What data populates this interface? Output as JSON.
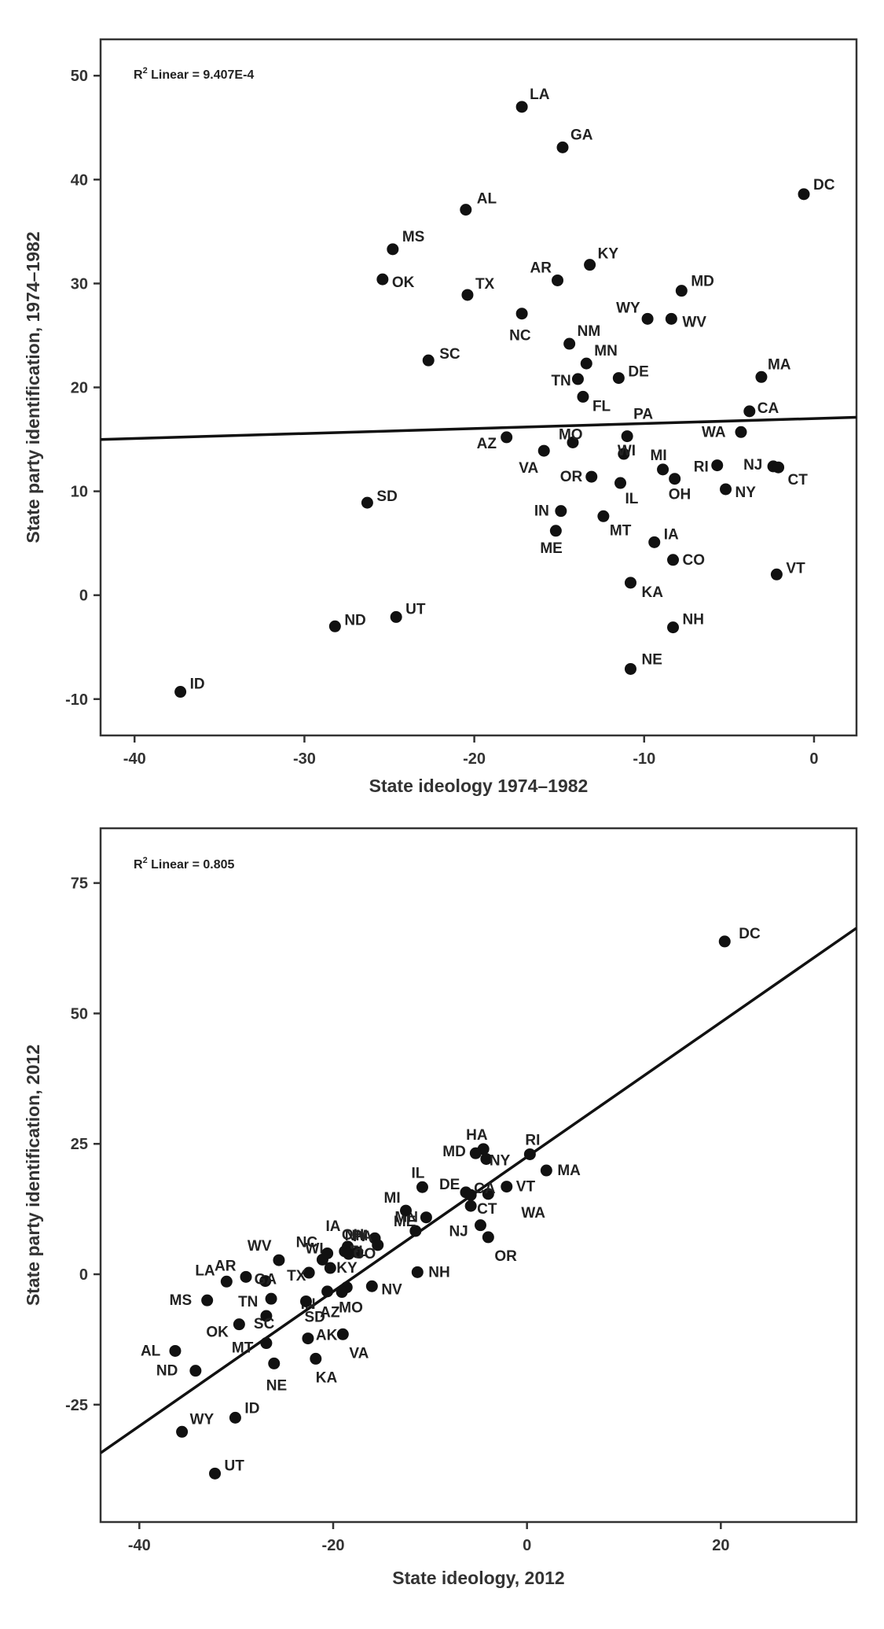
{
  "chart_data": [
    {
      "type": "scatter",
      "r2_prefix": "R",
      "r2_sup": "2",
      "r2_text": " Linear = 9.407E-4",
      "xlabel": "State ideology 1974–1982",
      "ylabel": "State party identification, 1974–1982",
      "xlim": [
        -42,
        2.5
      ],
      "ylim": [
        -13.5,
        53.5
      ],
      "xticks": [
        -40,
        -30,
        -20,
        -10,
        0
      ],
      "xtick_labels": [
        "-40",
        "-30",
        "-20",
        "-10",
        "0"
      ],
      "yticks": [
        -10,
        0,
        10,
        20,
        30,
        40,
        50
      ],
      "ytick_labels": [
        "-10",
        "0",
        "10",
        "20",
        "30",
        "40",
        "50"
      ],
      "fit_line": {
        "intercept": 17.0,
        "slope": 0.048
      },
      "points": [
        {
          "label": "LA",
          "x": -17.2,
          "y": 47.0
        },
        {
          "label": "GA",
          "x": -14.8,
          "y": 43.1
        },
        {
          "label": "DC",
          "x": -0.6,
          "y": 38.6
        },
        {
          "label": "AL",
          "x": -20.5,
          "y": 37.1
        },
        {
          "label": "MS",
          "x": -24.8,
          "y": 33.3
        },
        {
          "label": "OK",
          "x": -25.4,
          "y": 30.4
        },
        {
          "label": "TX",
          "x": -20.4,
          "y": 28.9
        },
        {
          "label": "AR",
          "x": -15.1,
          "y": 30.3
        },
        {
          "label": "KY",
          "x": -13.2,
          "y": 31.8
        },
        {
          "label": "MD",
          "x": -7.8,
          "y": 29.3
        },
        {
          "label": "WY",
          "x": -9.8,
          "y": 26.6
        },
        {
          "label": "WV",
          "x": -8.4,
          "y": 26.6
        },
        {
          "label": "NC",
          "x": -17.2,
          "y": 27.1
        },
        {
          "label": "NM",
          "x": -14.4,
          "y": 24.2
        },
        {
          "label": "MN",
          "x": -13.4,
          "y": 22.3
        },
        {
          "label": "SC",
          "x": -22.7,
          "y": 22.6
        },
        {
          "label": "TN",
          "x": -13.9,
          "y": 20.8
        },
        {
          "label": "DE",
          "x": -11.5,
          "y": 20.9
        },
        {
          "label": "FL",
          "x": -13.6,
          "y": 19.1
        },
        {
          "label": "MA",
          "x": -3.1,
          "y": 21.0
        },
        {
          "label": "CA",
          "x": -3.8,
          "y": 17.7
        },
        {
          "label": "PA",
          "x": -11.0,
          "y": 15.3
        },
        {
          "label": "MO",
          "x": -14.2,
          "y": 14.7
        },
        {
          "label": "AZ",
          "x": -18.1,
          "y": 15.2
        },
        {
          "label": "VA",
          "x": -15.9,
          "y": 13.9
        },
        {
          "label": "WI",
          "x": -11.2,
          "y": 13.6
        },
        {
          "label": "WA",
          "x": -4.3,
          "y": 15.7
        },
        {
          "label": "RI",
          "x": -5.7,
          "y": 12.5
        },
        {
          "label": "NJ",
          "x": -2.4,
          "y": 12.4
        },
        {
          "label": "CT",
          "x": -2.1,
          "y": 12.3
        },
        {
          "label": "MI",
          "x": -8.9,
          "y": 12.1
        },
        {
          "label": "OR",
          "x": -13.1,
          "y": 11.4
        },
        {
          "label": "OH",
          "x": -8.2,
          "y": 11.2
        },
        {
          "label": "IL",
          "x": -11.4,
          "y": 10.8
        },
        {
          "label": "NY",
          "x": -5.2,
          "y": 10.2
        },
        {
          "label": "SD",
          "x": -26.3,
          "y": 8.9
        },
        {
          "label": "IN",
          "x": -14.9,
          "y": 8.1
        },
        {
          "label": "MT",
          "x": -12.4,
          "y": 7.6
        },
        {
          "label": "ME",
          "x": -15.2,
          "y": 6.2
        },
        {
          "label": "IA",
          "x": -9.4,
          "y": 5.1
        },
        {
          "label": "CO",
          "x": -8.3,
          "y": 3.4
        },
        {
          "label": "VT",
          "x": -2.2,
          "y": 2.0
        },
        {
          "label": "KA",
          "x": -10.8,
          "y": 1.2
        },
        {
          "label": "UT",
          "x": -24.6,
          "y": -2.1
        },
        {
          "label": "ND",
          "x": -28.2,
          "y": -3.0
        },
        {
          "label": "NH",
          "x": -8.3,
          "y": -3.1
        },
        {
          "label": "NE",
          "x": -10.8,
          "y": -7.1
        },
        {
          "label": "ID",
          "x": -37.3,
          "y": -9.3
        }
      ]
    },
    {
      "type": "scatter",
      "r2_prefix": "R",
      "r2_sup": "2",
      "r2_text": " Linear = 0.805",
      "xlabel": "State ideology, 2012",
      "ylabel": "State party identification, 2012",
      "xlim": [
        -44,
        34
      ],
      "ylim": [
        -47.5,
        85.5
      ],
      "xticks": [
        -40,
        -20,
        0,
        20
      ],
      "xtick_labels": [
        "-40",
        "-20",
        "0",
        "20"
      ],
      "yticks": [
        -25,
        0,
        25,
        50,
        75
      ],
      "ytick_labels": [
        "-25",
        "0",
        "25",
        "50",
        "75"
      ],
      "fit_line": {
        "intercept": 22.5,
        "slope": 1.29
      },
      "points": [
        {
          "label": "DC",
          "x": 20.4,
          "y": 63.8
        },
        {
          "label": "RI",
          "x": 0.3,
          "y": 23.0
        },
        {
          "label": "MA",
          "x": 2.0,
          "y": 19.9
        },
        {
          "label": "HA",
          "x": -4.5,
          "y": 24.0
        },
        {
          "label": "MD",
          "x": -5.3,
          "y": 23.2
        },
        {
          "label": "NY",
          "x": -4.2,
          "y": 22.1
        },
        {
          "label": "VT",
          "x": -2.1,
          "y": 16.8
        },
        {
          "label": "WA",
          "x": -4.0,
          "y": 15.4
        },
        {
          "label": "IL",
          "x": -10.8,
          "y": 16.7
        },
        {
          "label": "DE",
          "x": -6.3,
          "y": 15.7
        },
        {
          "label": "CA",
          "x": -5.8,
          "y": 15.2
        },
        {
          "label": "CT",
          "x": -5.8,
          "y": 13.1
        },
        {
          "label": "MN",
          "x": -10.4,
          "y": 10.9
        },
        {
          "label": "MI",
          "x": -12.5,
          "y": 12.2
        },
        {
          "label": "NJ",
          "x": -4.8,
          "y": 9.4
        },
        {
          "label": "OR",
          "x": -4.0,
          "y": 7.1
        },
        {
          "label": "ME",
          "x": -11.5,
          "y": 8.3
        },
        {
          "label": "PA",
          "x": -15.7,
          "y": 6.9
        },
        {
          "label": "NM",
          "x": -15.4,
          "y": 5.6
        },
        {
          "label": "IA",
          "x": -18.5,
          "y": 5.3
        },
        {
          "label": "OH",
          "x": -17.5,
          "y": 4.2
        },
        {
          "label": "WI",
          "x": -21.1,
          "y": 2.8
        },
        {
          "label": "WV",
          "x": -25.6,
          "y": 2.7
        },
        {
          "label": "NC",
          "x": -20.6,
          "y": 4.0
        },
        {
          "label": "NH",
          "x": -11.3,
          "y": 0.4
        },
        {
          "label": "FL",
          "x": -18.8,
          "y": 4.4
        },
        {
          "label": "CO",
          "x": -18.4,
          "y": 3.9
        },
        {
          "label": "KY",
          "x": -20.3,
          "y": 1.2
        },
        {
          "label": "TX",
          "x": -22.5,
          "y": 0.3
        },
        {
          "label": "GA",
          "x": -27.0,
          "y": -1.3
        },
        {
          "label": "AR",
          "x": -29.0,
          "y": -0.5
        },
        {
          "label": "LA",
          "x": -31.0,
          "y": -1.4
        },
        {
          "label": "NV",
          "x": -16.0,
          "y": -2.3
        },
        {
          "label": "MO",
          "x": -18.6,
          "y": -2.5
        },
        {
          "label": "AZ",
          "x": -19.1,
          "y": -3.4
        },
        {
          "label": "IN",
          "x": -20.6,
          "y": -3.3
        },
        {
          "label": "TN",
          "x": -26.4,
          "y": -4.7
        },
        {
          "label": "MS",
          "x": -33.0,
          "y": -5.0
        },
        {
          "label": "SD",
          "x": -22.8,
          "y": -5.2
        },
        {
          "label": "OK",
          "x": -29.7,
          "y": -9.6
        },
        {
          "label": "SC",
          "x": -26.9,
          "y": -8.0
        },
        {
          "label": "VA",
          "x": -19.0,
          "y": -11.5
        },
        {
          "label": "AK",
          "x": -22.6,
          "y": -12.3
        },
        {
          "label": "MT",
          "x": -26.9,
          "y": -13.2
        },
        {
          "label": "AL",
          "x": -36.3,
          "y": -14.7
        },
        {
          "label": "KA",
          "x": -21.8,
          "y": -16.2
        },
        {
          "label": "NE",
          "x": -26.1,
          "y": -17.1
        },
        {
          "label": "ND",
          "x": -34.2,
          "y": -18.5
        },
        {
          "label": "ID",
          "x": -30.1,
          "y": -27.5
        },
        {
          "label": "WY",
          "x": -35.6,
          "y": -30.2
        },
        {
          "label": "UT",
          "x": -32.2,
          "y": -38.2
        }
      ]
    }
  ]
}
